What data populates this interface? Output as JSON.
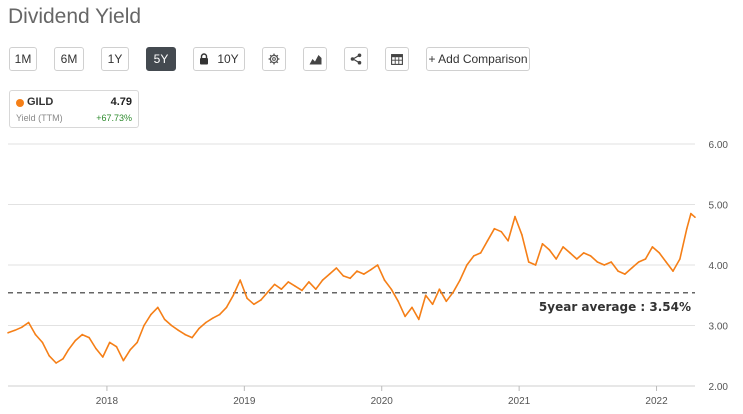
{
  "page_title": "Dividend Yield",
  "toolbar": {
    "ranges": [
      {
        "label": "1M",
        "active": false,
        "name": "range-1m-button"
      },
      {
        "label": "6M",
        "active": false,
        "name": "range-6m-button"
      },
      {
        "label": "1Y",
        "active": false,
        "name": "range-1y-button"
      },
      {
        "label": "5Y",
        "active": true,
        "name": "range-5y-button"
      },
      {
        "label": "10Y",
        "active": false,
        "name": "range-10y-button"
      }
    ],
    "icons": [
      "gear-icon",
      "chart-type-icon",
      "share-icon",
      "table-icon",
      "lock-icon"
    ],
    "add_comparison_label": "+ Add Comparison"
  },
  "legend": {
    "ticker": "GILD",
    "value": "4.79",
    "metric": "Yield (TTM)",
    "change": "+67.73%",
    "color": "#f57f17"
  },
  "chart_data": {
    "type": "line",
    "title": "",
    "xlabel": "",
    "ylabel": "",
    "x_ticks": [
      "2018",
      "2019",
      "2020",
      "2021",
      "2022"
    ],
    "y_ticks": [
      "2.00",
      "3.00",
      "4.00",
      "5.00",
      "6.00"
    ],
    "ylim": [
      2.0,
      6.0
    ],
    "xlim": [
      2017.28,
      2022.28
    ],
    "grid": "horizontal",
    "series": [
      {
        "color": "#f57f17",
        "x": [
          2017.28,
          2017.33,
          2017.38,
          2017.43,
          2017.48,
          2017.53,
          2017.58,
          2017.63,
          2017.68,
          2017.72,
          2017.77,
          2017.82,
          2017.87,
          2017.92,
          2017.97,
          2018.02,
          2018.07,
          2018.12,
          2018.17,
          2018.22,
          2018.27,
          2018.32,
          2018.37,
          2018.42,
          2018.47,
          2018.52,
          2018.57,
          2018.62,
          2018.67,
          2018.72,
          2018.77,
          2018.82,
          2018.87,
          2018.92,
          2018.97,
          2019.02,
          2019.07,
          2019.12,
          2019.17,
          2019.22,
          2019.27,
          2019.32,
          2019.37,
          2019.42,
          2019.47,
          2019.52,
          2019.57,
          2019.62,
          2019.67,
          2019.72,
          2019.77,
          2019.82,
          2019.87,
          2019.92,
          2019.97,
          2020.02,
          2020.07,
          2020.12,
          2020.17,
          2020.22,
          2020.27,
          2020.32,
          2020.37,
          2020.42,
          2020.47,
          2020.52,
          2020.57,
          2020.62,
          2020.67,
          2020.72,
          2020.77,
          2020.82,
          2020.87,
          2020.92,
          2020.97,
          2021.02,
          2021.07,
          2021.12,
          2021.17,
          2021.22,
          2021.27,
          2021.32,
          2021.37,
          2021.42,
          2021.47,
          2021.52,
          2021.57,
          2021.62,
          2021.67,
          2021.72,
          2021.77,
          2021.82,
          2021.87,
          2021.92,
          2021.97,
          2022.02,
          2022.07,
          2022.12,
          2022.17,
          2022.22,
          2022.25,
          2022.28
        ],
        "values": [
          2.88,
          2.92,
          2.97,
          3.05,
          2.85,
          2.72,
          2.5,
          2.38,
          2.45,
          2.6,
          2.75,
          2.85,
          2.8,
          2.62,
          2.48,
          2.72,
          2.65,
          2.42,
          2.6,
          2.72,
          3.0,
          3.18,
          3.3,
          3.1,
          3.0,
          2.92,
          2.85,
          2.8,
          2.95,
          3.05,
          3.12,
          3.18,
          3.3,
          3.5,
          3.75,
          3.45,
          3.35,
          3.42,
          3.55,
          3.68,
          3.6,
          3.72,
          3.65,
          3.58,
          3.72,
          3.6,
          3.75,
          3.85,
          3.95,
          3.82,
          3.78,
          3.9,
          3.85,
          3.92,
          4.0,
          3.75,
          3.6,
          3.4,
          3.15,
          3.3,
          3.1,
          3.5,
          3.35,
          3.6,
          3.4,
          3.55,
          3.75,
          4.0,
          4.15,
          4.2,
          4.4,
          4.6,
          4.55,
          4.4,
          4.8,
          4.5,
          4.05,
          4.0,
          4.35,
          4.25,
          4.1,
          4.3,
          4.2,
          4.1,
          4.2,
          4.15,
          4.05,
          4.0,
          4.05,
          3.9,
          3.85,
          3.95,
          4.05,
          4.1,
          4.3,
          4.2,
          4.05,
          3.9,
          4.1,
          4.6,
          4.85,
          4.79
        ]
      }
    ],
    "reference_lines": [
      {
        "value": 3.54,
        "label": "5year average : 3.54%",
        "style": "dashed"
      }
    ]
  }
}
